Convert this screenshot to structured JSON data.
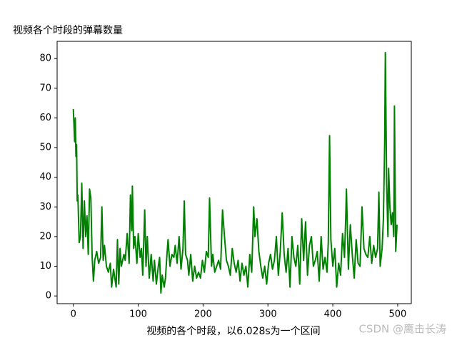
{
  "chart_data": {
    "type": "line",
    "title": "视频各个时段的弹幕数量",
    "x_label": "视频的各个时段，以6.028s为一个区间",
    "annotation": "CSDN @鹰击长涛",
    "x": [
      0,
      2,
      3,
      4,
      5,
      6,
      7,
      9,
      11,
      13,
      15,
      17,
      19,
      21,
      23,
      25,
      27,
      29,
      31,
      33,
      36,
      39,
      42,
      44,
      46,
      48,
      51,
      54,
      57,
      59,
      62,
      64,
      66,
      68,
      70,
      72,
      74,
      78,
      80,
      83,
      86,
      88,
      90,
      91,
      93,
      95,
      98,
      100,
      103,
      105,
      107,
      110,
      112,
      114,
      117,
      120,
      123,
      125,
      128,
      131,
      133,
      135,
      137,
      140,
      142,
      144,
      146,
      149,
      152,
      155,
      157,
      160,
      163,
      166,
      169,
      171,
      173,
      176,
      178,
      181,
      184,
      187,
      190,
      193,
      196,
      199,
      202,
      205,
      208,
      210,
      213,
      215,
      218,
      221,
      224,
      227,
      230,
      233,
      236,
      239,
      242,
      245,
      248,
      251,
      254,
      257,
      260,
      263,
      266,
      269,
      272,
      275,
      278,
      280,
      283,
      286,
      289,
      292,
      295,
      298,
      301,
      304,
      307,
      310,
      313,
      316,
      319,
      322,
      325,
      328,
      331,
      334,
      337,
      340,
      343,
      346,
      349,
      352,
      355,
      358,
      361,
      364,
      367,
      370,
      373,
      376,
      379,
      382,
      385,
      388,
      391,
      393,
      395,
      397,
      400,
      403,
      406,
      409,
      412,
      415,
      418,
      420,
      421,
      424,
      427,
      430,
      433,
      436,
      439,
      442,
      445,
      448,
      451,
      454,
      457,
      460,
      463,
      466,
      469,
      471,
      473,
      476,
      478,
      480,
      481,
      483,
      485,
      486,
      488,
      490,
      492,
      494,
      495,
      497,
      499
    ],
    "series": [
      {
        "name": "弹幕数量",
        "color": "#008000",
        "values": [
          63,
          52,
          60,
          47,
          51,
          32,
          34,
          18,
          20,
          38,
          16,
          32,
          20,
          27,
          14,
          36,
          33,
          13,
          5,
          12,
          15,
          11,
          13,
          30,
          12,
          17,
          10,
          8,
          11,
          3,
          9,
          6,
          3,
          19,
          4,
          16,
          10,
          14,
          12,
          21,
          11,
          34,
          22,
          37,
          16,
          20,
          11,
          21,
          13,
          16,
          7,
          29,
          10,
          20,
          6,
          14,
          5,
          12,
          4,
          10,
          13,
          1,
          7,
          3,
          6,
          13,
          19,
          10,
          14,
          13,
          17,
          11,
          20,
          9,
          16,
          32,
          14,
          12,
          7,
          14,
          5,
          10,
          6,
          8,
          6,
          12,
          8,
          15,
          13,
          33,
          10,
          14,
          8,
          10,
          12,
          9,
          29,
          20,
          12,
          10,
          7,
          16,
          11,
          8,
          12,
          5,
          11,
          7,
          10,
          3,
          14,
          8,
          30,
          20,
          26,
          15,
          10,
          6,
          10,
          4,
          11,
          14,
          9,
          12,
          20,
          7,
          15,
          28,
          14,
          8,
          16,
          3,
          20,
          13,
          10,
          17,
          4,
          26,
          12,
          25,
          7,
          17,
          20,
          10,
          12,
          15,
          5,
          20,
          9,
          13,
          8,
          18,
          54,
          19,
          10,
          16,
          3,
          11,
          7,
          21,
          13,
          27,
          36,
          9,
          24,
          14,
          6,
          19,
          11,
          10,
          30,
          16,
          14,
          13,
          20,
          11,
          17,
          13,
          16,
          35,
          10,
          16,
          26,
          52,
          82,
          38,
          20,
          43,
          30,
          24,
          28,
          20,
          64,
          15,
          24
        ]
      }
    ],
    "xlim": [
      -25,
      521
    ],
    "ylim": [
      -2.6,
      85.8
    ],
    "xticks": [
      0,
      100,
      200,
      300,
      400,
      500
    ],
    "yticks": [
      0,
      10,
      20,
      30,
      40,
      50,
      60,
      70,
      80
    ]
  }
}
